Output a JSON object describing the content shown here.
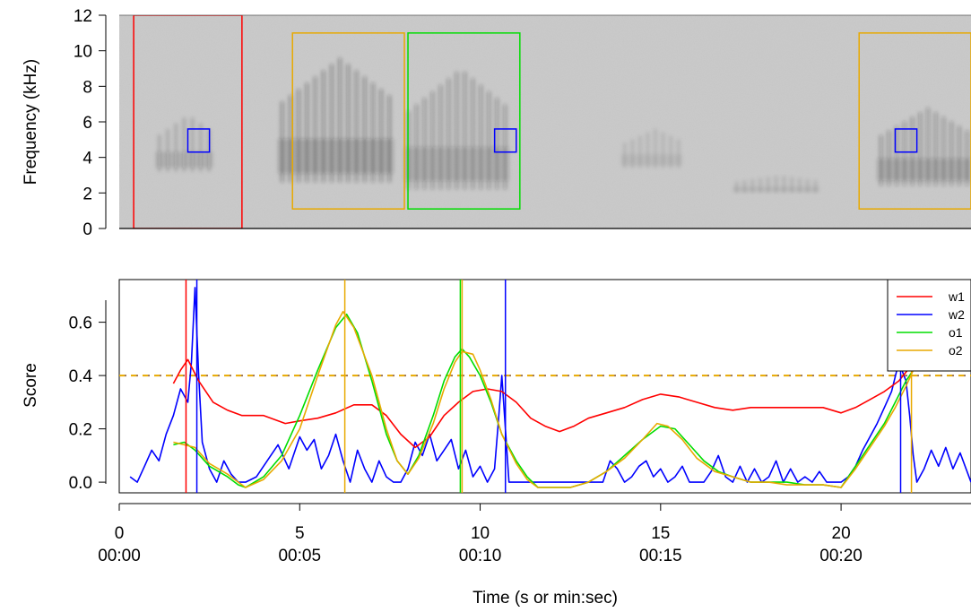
{
  "chart_data": [
    {
      "type": "heatmap",
      "panel": "spectrogram",
      "ylabel": "Frequency (kHz)",
      "ylim": [
        0,
        12
      ],
      "xlim": [
        0,
        23.6
      ],
      "yticks": [
        "0",
        "2",
        "4",
        "6",
        "8",
        "10",
        "12"
      ],
      "call_events": [
        {
          "start": 1.0,
          "end": 2.6,
          "fmin": 3.2,
          "fmax": 6.4,
          "intensity": 0.55
        },
        {
          "start": 4.4,
          "end": 7.6,
          "fmin": 2.6,
          "fmax": 9.6,
          "intensity": 1.0
        },
        {
          "start": 7.9,
          "end": 10.8,
          "fmin": 2.2,
          "fmax": 9.0,
          "intensity": 0.85
        },
        {
          "start": 13.9,
          "end": 15.6,
          "fmin": 3.4,
          "fmax": 5.6,
          "intensity": 0.35
        },
        {
          "start": 17.0,
          "end": 19.4,
          "fmin": 2.0,
          "fmax": 3.0,
          "intensity": 0.4
        },
        {
          "start": 21.0,
          "end": 23.6,
          "fmin": 2.4,
          "fmax": 6.8,
          "intensity": 0.9
        }
      ],
      "boxes": [
        {
          "label": "w1",
          "color": "#ff0000",
          "x0": 0.4,
          "x1": 3.4,
          "y0": 0,
          "y1": 12
        },
        {
          "label": "w2",
          "color": "#0000ff",
          "x0": 1.9,
          "x1": 2.5,
          "y0": 4.3,
          "y1": 5.6
        },
        {
          "label": "w2",
          "color": "#0000ff",
          "x0": 10.4,
          "x1": 11.0,
          "y0": 4.3,
          "y1": 5.6
        },
        {
          "label": "w2",
          "color": "#0000ff",
          "x0": 21.5,
          "x1": 22.1,
          "y0": 4.3,
          "y1": 5.6
        },
        {
          "label": "o1",
          "color": "#00dd00",
          "x0": 8.0,
          "x1": 11.1,
          "y0": 1.1,
          "y1": 11.0
        },
        {
          "label": "o2",
          "color": "#e8a900",
          "x0": 4.8,
          "x1": 7.9,
          "y0": 1.1,
          "y1": 11.0
        },
        {
          "label": "o2",
          "color": "#e8a900",
          "x0": 20.5,
          "x1": 23.6,
          "y0": 1.1,
          "y1": 11.0
        }
      ]
    },
    {
      "type": "line",
      "panel": "scores",
      "ylabel": "Score",
      "xlabel": "Time (s or min:sec)",
      "xlim": [
        0,
        23.6
      ],
      "ylim": [
        -0.04,
        0.76
      ],
      "yticks": [
        "0.0",
        "0.2",
        "0.4",
        "0.6"
      ],
      "xticks": [
        {
          "value": 0,
          "label": "0",
          "sublabel": "00:00"
        },
        {
          "value": 5,
          "label": "5",
          "sublabel": "00:05"
        },
        {
          "value": 10,
          "label": "10",
          "sublabel": "00:10"
        },
        {
          "value": 15,
          "label": "15",
          "sublabel": "00:15"
        },
        {
          "value": 20,
          "label": "20",
          "sublabel": "00:20"
        }
      ],
      "threshold": {
        "value": 0.4,
        "colors": [
          "#e8a900",
          "#0000ff"
        ]
      },
      "legend": {
        "position": "top-right",
        "entries": [
          "w1",
          "w2",
          "o1",
          "o2"
        ]
      },
      "series": [
        {
          "name": "w1",
          "color": "#ff0000",
          "x": [
            1.5,
            1.7,
            1.9,
            2.2,
            2.6,
            3.0,
            3.4,
            4.0,
            4.6,
            5.0,
            5.5,
            6.0,
            6.5,
            7.0,
            7.4,
            7.8,
            8.2,
            8.6,
            9.0,
            9.4,
            9.8,
            10.2,
            10.6,
            11.0,
            11.4,
            11.8,
            12.2,
            12.6,
            13.0,
            13.5,
            14.0,
            14.5,
            15.0,
            15.5,
            16.0,
            16.5,
            17.0,
            17.5,
            18.0,
            18.5,
            19.0,
            19.5,
            20.0,
            20.4,
            20.8,
            21.2,
            21.6,
            21.9
          ],
          "y": [
            0.37,
            0.42,
            0.46,
            0.38,
            0.3,
            0.27,
            0.25,
            0.25,
            0.22,
            0.23,
            0.24,
            0.26,
            0.29,
            0.29,
            0.25,
            0.18,
            0.13,
            0.17,
            0.25,
            0.3,
            0.34,
            0.35,
            0.34,
            0.3,
            0.24,
            0.21,
            0.19,
            0.21,
            0.24,
            0.26,
            0.28,
            0.31,
            0.33,
            0.32,
            0.3,
            0.28,
            0.27,
            0.28,
            0.28,
            0.28,
            0.28,
            0.28,
            0.26,
            0.28,
            0.31,
            0.34,
            0.38,
            0.43
          ]
        },
        {
          "name": "w2",
          "color": "#0000ff",
          "x": [
            0.3,
            0.5,
            0.7,
            0.9,
            1.1,
            1.3,
            1.5,
            1.7,
            1.9,
            2.0,
            2.1,
            2.2,
            2.3,
            2.5,
            2.7,
            2.9,
            3.1,
            3.3,
            3.5,
            3.8,
            4.1,
            4.4,
            4.7,
            5.0,
            5.2,
            5.4,
            5.6,
            5.8,
            6.0,
            6.2,
            6.4,
            6.6,
            6.8,
            7.0,
            7.2,
            7.4,
            7.6,
            7.8,
            8.0,
            8.2,
            8.4,
            8.6,
            8.8,
            9.0,
            9.2,
            9.4,
            9.6,
            9.8,
            10.0,
            10.2,
            10.4,
            10.5,
            10.6,
            10.7,
            10.8,
            11.0,
            11.2,
            11.4,
            11.6,
            11.8,
            12.0,
            12.2,
            12.4,
            12.6,
            12.8,
            13.0,
            13.2,
            13.4,
            13.6,
            13.8,
            14.0,
            14.2,
            14.4,
            14.6,
            14.8,
            15.0,
            15.2,
            15.4,
            15.6,
            15.8,
            16.0,
            16.2,
            16.4,
            16.6,
            16.8,
            17.0,
            17.2,
            17.4,
            17.6,
            17.8,
            18.0,
            18.2,
            18.4,
            18.6,
            18.8,
            19.0,
            19.2,
            19.4,
            19.6,
            19.8,
            20.0,
            20.2,
            20.4,
            20.6,
            20.8,
            21.0,
            21.2,
            21.4,
            21.6,
            21.8,
            21.9,
            22.0,
            22.1,
            22.3,
            22.5,
            22.7,
            22.9,
            23.1,
            23.3,
            23.6
          ],
          "y": [
            0.02,
            0.0,
            0.06,
            0.12,
            0.08,
            0.18,
            0.25,
            0.35,
            0.3,
            0.45,
            0.73,
            0.4,
            0.15,
            0.05,
            0.0,
            0.08,
            0.03,
            0.0,
            0.0,
            0.02,
            0.08,
            0.14,
            0.05,
            0.17,
            0.12,
            0.16,
            0.05,
            0.1,
            0.18,
            0.08,
            0.0,
            0.12,
            0.05,
            0.0,
            0.08,
            0.02,
            0.0,
            0.0,
            0.05,
            0.15,
            0.1,
            0.18,
            0.08,
            0.12,
            0.16,
            0.05,
            0.12,
            0.02,
            0.06,
            0.0,
            0.05,
            0.22,
            0.4,
            0.2,
            0.0,
            0.0,
            0.0,
            0.0,
            0.0,
            0.0,
            0.0,
            0.0,
            0.0,
            0.0,
            0.0,
            0.0,
            0.0,
            0.0,
            0.08,
            0.05,
            0.0,
            0.02,
            0.06,
            0.08,
            0.02,
            0.05,
            0.0,
            0.02,
            0.06,
            0.0,
            0.0,
            0.0,
            0.04,
            0.1,
            0.02,
            0.0,
            0.06,
            0.0,
            0.05,
            0.0,
            0.02,
            0.08,
            0.0,
            0.05,
            0.0,
            0.02,
            0.0,
            0.04,
            0.0,
            0.0,
            0.0,
            0.02,
            0.06,
            0.12,
            0.17,
            0.22,
            0.28,
            0.34,
            0.45,
            0.38,
            0.25,
            0.1,
            0.0,
            0.05,
            0.12,
            0.06,
            0.13,
            0.05,
            0.11,
            0.0
          ]
        },
        {
          "name": "o1",
          "color": "#00dd00",
          "x": [
            1.5,
            1.8,
            2.1,
            2.5,
            3.0,
            3.3,
            3.5,
            4.0,
            4.5,
            5.0,
            5.5,
            6.0,
            6.3,
            6.6,
            7.0,
            7.4,
            7.7,
            8.0,
            8.3,
            8.7,
            9.0,
            9.3,
            9.5,
            9.7,
            10.0,
            10.3,
            10.6,
            11.0,
            11.3,
            11.6,
            12.0,
            12.5,
            13.0,
            13.5,
            14.0,
            14.5,
            15.0,
            15.4,
            15.8,
            16.2,
            16.6,
            17.0,
            17.5,
            18.0,
            18.5,
            19.0,
            19.5,
            20.0,
            20.4,
            20.8,
            21.2,
            21.5,
            21.8,
            22.0
          ],
          "y": [
            0.14,
            0.15,
            0.12,
            0.06,
            0.02,
            -0.01,
            -0.02,
            0.02,
            0.1,
            0.25,
            0.42,
            0.58,
            0.63,
            0.56,
            0.38,
            0.18,
            0.08,
            0.03,
            0.1,
            0.25,
            0.38,
            0.47,
            0.5,
            0.47,
            0.4,
            0.3,
            0.18,
            0.08,
            0.02,
            -0.02,
            -0.02,
            -0.02,
            0.0,
            0.04,
            0.1,
            0.16,
            0.21,
            0.2,
            0.14,
            0.08,
            0.04,
            0.02,
            0.0,
            0.0,
            0.0,
            -0.01,
            -0.01,
            -0.02,
            0.06,
            0.14,
            0.22,
            0.3,
            0.38,
            0.42
          ]
        },
        {
          "name": "o2",
          "color": "#e8a900",
          "x": [
            1.5,
            1.8,
            2.1,
            2.5,
            3.0,
            3.3,
            3.5,
            4.0,
            4.5,
            5.0,
            5.5,
            6.0,
            6.2,
            6.5,
            7.0,
            7.4,
            7.7,
            8.0,
            8.3,
            8.7,
            9.0,
            9.3,
            9.5,
            9.8,
            10.0,
            10.3,
            10.6,
            11.0,
            11.3,
            11.6,
            12.0,
            12.5,
            13.0,
            13.5,
            14.0,
            14.5,
            14.9,
            15.2,
            15.6,
            16.0,
            16.5,
            17.0,
            17.5,
            18.0,
            18.5,
            19.0,
            19.5,
            20.0,
            20.4,
            20.8,
            21.2,
            21.5,
            21.8,
            22.0
          ],
          "y": [
            0.15,
            0.14,
            0.13,
            0.07,
            0.03,
            0.0,
            -0.02,
            0.01,
            0.08,
            0.2,
            0.4,
            0.59,
            0.64,
            0.58,
            0.4,
            0.2,
            0.08,
            0.03,
            0.09,
            0.22,
            0.35,
            0.45,
            0.49,
            0.48,
            0.42,
            0.31,
            0.18,
            0.07,
            0.01,
            -0.02,
            -0.02,
            -0.02,
            0.0,
            0.04,
            0.09,
            0.16,
            0.22,
            0.21,
            0.16,
            0.09,
            0.04,
            0.02,
            0.0,
            0.0,
            -0.01,
            -0.01,
            -0.01,
            -0.02,
            0.05,
            0.13,
            0.21,
            0.28,
            0.36,
            0.42
          ]
        }
      ],
      "vlines": [
        {
          "x": 1.85,
          "color": "#ff0000"
        },
        {
          "x": 2.15,
          "color": "#0000ff"
        },
        {
          "x": 6.25,
          "color": "#e8a900"
        },
        {
          "x": 9.45,
          "color": "#00dd00"
        },
        {
          "x": 9.5,
          "color": "#e8a900"
        },
        {
          "x": 10.7,
          "color": "#0000ff"
        },
        {
          "x": 21.65,
          "color": "#0000ff"
        },
        {
          "x": 21.95,
          "color": "#e8a900"
        }
      ]
    }
  ]
}
